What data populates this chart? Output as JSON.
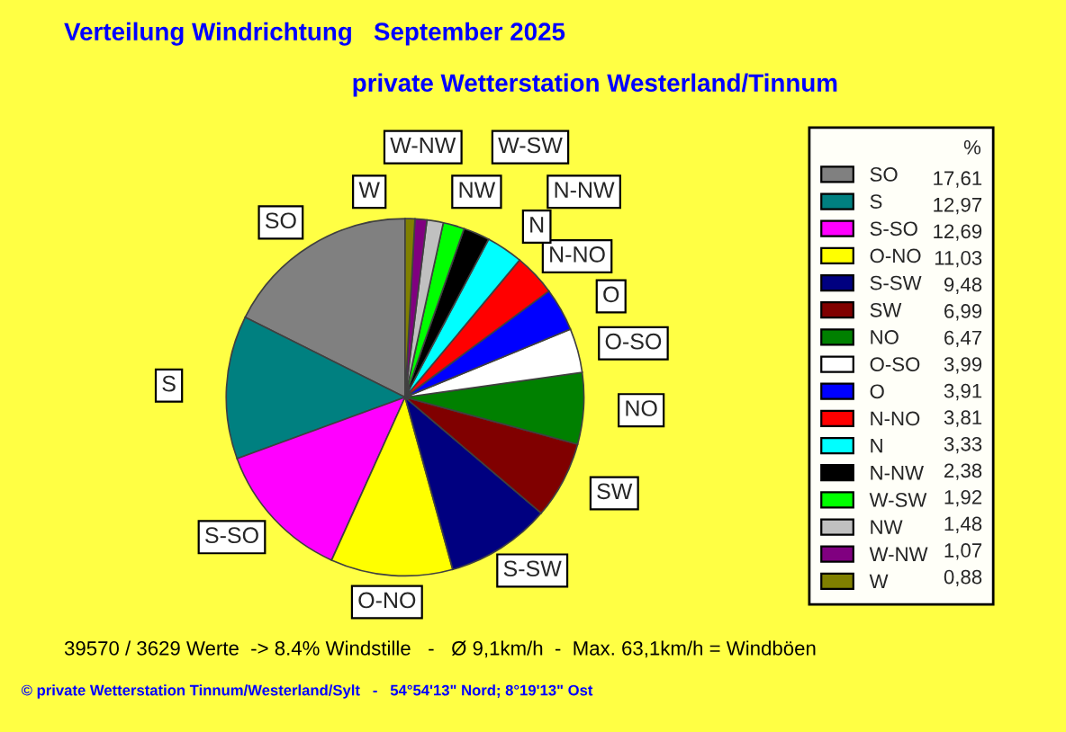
{
  "chart_data": {
    "type": "pie",
    "title": "Verteilung Windrichtung   September 2025",
    "subtitle": "private Wetterstation Westerland/Tinnum",
    "legend_title": "%",
    "legend": "right",
    "categories": [
      "SO",
      "S",
      "S-SO",
      "O-NO",
      "S-SW",
      "SW",
      "NO",
      "O-SO",
      "O",
      "N-NO",
      "N",
      "N-NW",
      "W-SW",
      "NW",
      "W-NW",
      "W"
    ],
    "values": [
      17.61,
      12.97,
      12.69,
      11.03,
      9.48,
      6.99,
      6.47,
      3.99,
      3.91,
      3.81,
      3.33,
      2.38,
      1.92,
      1.48,
      1.07,
      0.88
    ],
    "value_labels": [
      "17,61",
      "12,97",
      "12,69",
      "11,03",
      "9,48",
      "6,99",
      "6,47",
      "3,99",
      "3,91",
      "3,81",
      "3,33",
      "2,38",
      "1,92",
      "1,48",
      "1,07",
      "0,88"
    ],
    "colors": [
      "#808080",
      "#008080",
      "#ff00ff",
      "#ffff00",
      "#000080",
      "#800000",
      "#008000",
      "#ffffff",
      "#0000ff",
      "#ff0000",
      "#00ffff",
      "#000000",
      "#00ff00",
      "#c0c0c0",
      "#800080",
      "#808000"
    ],
    "annotations": [
      "39570 / 3629 Werte  -> 8.4% Windstille   -   Ø 9,1km/h  -  Max. 63,1km/h = Windböen",
      "© private Wetterstation Tinnum/Westerland/Sylt   -   54°54'13\" Nord; 8°19'13\" Ost"
    ]
  }
}
